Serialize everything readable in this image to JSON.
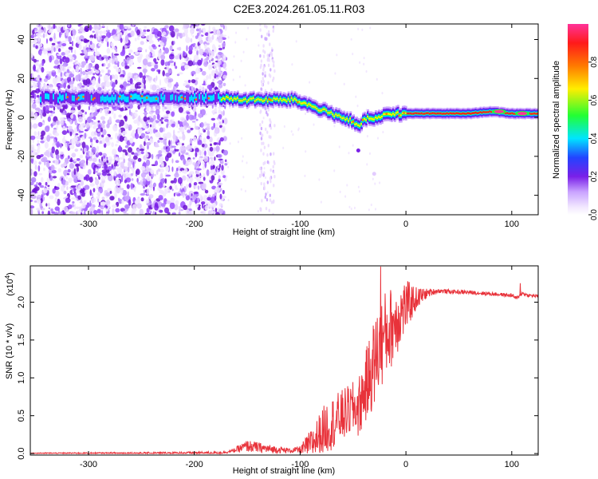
{
  "title": "C2E3.2024.261.05.11.R03",
  "chart_data": [
    {
      "type": "heatmap",
      "title": "",
      "xlabel": "Height of straight line (km)",
      "ylabel": "Frequency (Hz)",
      "xlim": [
        -355,
        125
      ],
      "ylim": [
        -50,
        48
      ],
      "xticks": [
        -300,
        -200,
        -100,
        0,
        100
      ],
      "yticks": [
        -40,
        -20,
        0,
        20,
        40
      ],
      "colorbar": {
        "label": "Normalized spectral amplitude",
        "range": [
          0,
          1
        ],
        "ticks": [
          "0.0",
          "0.2",
          "0.4",
          "0.6",
          "0.8"
        ],
        "tick_values": [
          0.0,
          0.2,
          0.4,
          0.6,
          0.8
        ]
      },
      "ridge": {
        "x": [
          -345,
          -300,
          -250,
          -200,
          -175,
          -150,
          -125,
          -105,
          -90,
          -75,
          -60,
          -50,
          -45,
          -40,
          -35,
          -30,
          -20,
          -10,
          0,
          20,
          40,
          60,
          80,
          100,
          125
        ],
        "y": [
          10,
          10,
          10,
          10,
          10,
          9,
          9,
          9,
          6,
          3,
          0,
          -2,
          -5,
          -2,
          0,
          -1,
          1,
          2,
          2,
          2,
          2,
          2,
          3,
          2,
          2
        ]
      },
      "noise_region_x": [
        -355,
        -170
      ],
      "colors": [
        "#ffffff",
        "#e6d6ff",
        "#b07cff",
        "#7a20e8",
        "#2244ff",
        "#00e5ff",
        "#22ff33",
        "#ffee00",
        "#ff7a00",
        "#ff1a1a",
        "#ff3399"
      ]
    },
    {
      "type": "line",
      "title": "",
      "xlabel": "Height of straight line (km)",
      "ylabel": "SNR (10 * v/v)",
      "scale_label": "(x10",
      "scale_exp": "4",
      "scale_close": ")",
      "xlim": [
        -355,
        125
      ],
      "ylim": [
        -0.02,
        2.48
      ],
      "xticks": [
        -300,
        -200,
        -100,
        0,
        100
      ],
      "yticks": [
        "0.0",
        "0.5",
        "1.0",
        "1.5",
        "2.0"
      ],
      "ytick_values": [
        0.0,
        0.5,
        1.0,
        1.5,
        2.0
      ],
      "color": "#e8323a",
      "envelope": {
        "x": [
          -355,
          -250,
          -175,
          -165,
          -150,
          -130,
          -110,
          -100,
          -90,
          -75,
          -60,
          -50,
          -45,
          -40,
          -35,
          -30,
          -25,
          -20,
          -15,
          -10,
          -5,
          0,
          10,
          20,
          30,
          40,
          60,
          80,
          100,
          105,
          110,
          115,
          125
        ],
        "y": [
          0.005,
          0.005,
          0.01,
          0.03,
          0.1,
          0.06,
          0.04,
          0.05,
          0.12,
          0.35,
          0.5,
          0.6,
          0.6,
          0.8,
          1.0,
          1.2,
          1.4,
          1.55,
          1.65,
          1.75,
          1.85,
          1.95,
          2.05,
          2.12,
          2.15,
          2.14,
          2.13,
          2.11,
          2.09,
          2.05,
          2.12,
          2.09,
          2.08
        ]
      },
      "noise": {
        "x": [
          -355,
          -165,
          -150,
          -130,
          -110,
          -100,
          -90,
          -75,
          -60,
          -50,
          -40,
          -30,
          -20,
          -10,
          0,
          10,
          20,
          30,
          125
        ],
        "amplitude": [
          0.005,
          0.02,
          0.08,
          0.06,
          0.03,
          0.05,
          0.2,
          0.35,
          0.35,
          0.35,
          0.45,
          0.6,
          0.6,
          0.5,
          0.35,
          0.15,
          0.06,
          0.03,
          0.02
        ]
      },
      "spikes": [
        {
          "x": -24,
          "y": 2.47
        },
        {
          "x": -14,
          "y": 2.1
        },
        {
          "x": 108,
          "y": 2.25
        }
      ]
    }
  ]
}
